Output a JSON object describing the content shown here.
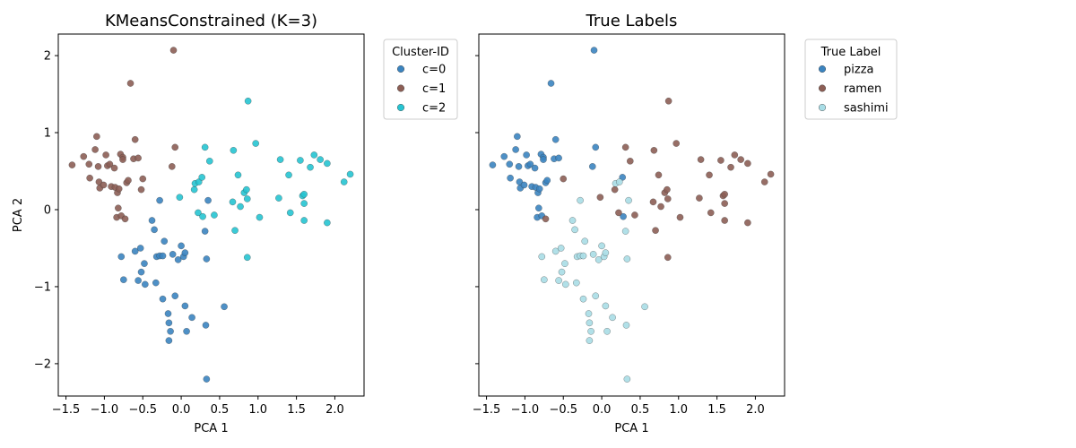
{
  "figure": {
    "background": "#ffffff"
  },
  "chart_data": [
    {
      "type": "scatter",
      "title": "KMeansConstrained (K=3)",
      "xlabel": "PCA 1",
      "ylabel": "PCA 2",
      "xlim": [
        -1.6,
        2.38
      ],
      "ylim": [
        -2.42,
        2.28
      ],
      "xticks": [
        -1.5,
        -1.0,
        -0.5,
        0.0,
        0.5,
        1.0,
        1.5,
        2.0
      ],
      "xtick_labels": [
        "−1.5",
        "−1.0",
        "−0.5",
        "0.0",
        "0.5",
        "1.0",
        "1.5",
        "2.0"
      ],
      "yticks": [
        -2,
        -1,
        0,
        1,
        2
      ],
      "ytick_labels": [
        "−2",
        "−1",
        "0",
        "1",
        "2"
      ],
      "show_yticklabels": true,
      "grid": false,
      "legend": {
        "title": "Cluster-ID",
        "placement": "outside-top-right",
        "entries": [
          {
            "label": "c=0",
            "color": "#3b84c0"
          },
          {
            "label": "c=1",
            "color": "#8c5e55"
          },
          {
            "label": "c=2",
            "color": "#26c4d2"
          }
        ]
      },
      "series": [
        {
          "name": "c=0",
          "color": "#3b84c0",
          "points": [
            [
              -0.78,
              -0.61
            ],
            [
              -0.75,
              -0.91
            ],
            [
              -0.6,
              -0.54
            ],
            [
              -0.56,
              -0.92
            ],
            [
              -0.53,
              -0.5
            ],
            [
              -0.52,
              -0.81
            ],
            [
              -0.48,
              -0.7
            ],
            [
              -0.47,
              -0.97
            ],
            [
              -0.38,
              -0.14
            ],
            [
              -0.35,
              -0.26
            ],
            [
              -0.33,
              -0.95
            ],
            [
              -0.32,
              -0.61
            ],
            [
              -0.28,
              -0.6
            ],
            [
              -0.24,
              -0.6
            ],
            [
              -0.24,
              -1.16
            ],
            [
              -0.22,
              -0.41
            ],
            [
              -0.16,
              -1.47
            ],
            [
              -0.16,
              -1.7
            ],
            [
              -0.17,
              -1.35
            ],
            [
              -0.14,
              -1.58
            ],
            [
              -0.11,
              -0.58
            ],
            [
              -0.08,
              -1.12
            ],
            [
              -0.04,
              -0.65
            ],
            [
              0.0,
              -0.47
            ],
            [
              0.03,
              -0.61
            ],
            [
              0.05,
              -0.56
            ],
            [
              0.05,
              -1.25
            ],
            [
              0.07,
              -1.58
            ],
            [
              0.14,
              -1.4
            ],
            [
              0.33,
              -0.64
            ],
            [
              0.32,
              -1.5
            ],
            [
              0.33,
              -2.2
            ],
            [
              0.56,
              -1.26
            ],
            [
              0.35,
              0.12
            ],
            [
              -0.28,
              0.12
            ],
            [
              0.31,
              -0.28
            ]
          ]
        },
        {
          "name": "c=1",
          "color": "#8c5e55",
          "points": [
            [
              -1.42,
              0.58
            ],
            [
              -1.27,
              0.69
            ],
            [
              -1.2,
              0.59
            ],
            [
              -1.19,
              0.41
            ],
            [
              -1.12,
              0.78
            ],
            [
              -1.1,
              0.95
            ],
            [
              -1.08,
              0.56
            ],
            [
              -1.07,
              0.36
            ],
            [
              -1.06,
              0.28
            ],
            [
              -1.01,
              0.32
            ],
            [
              -0.98,
              0.71
            ],
            [
              -0.96,
              0.57
            ],
            [
              -0.93,
              0.59
            ],
            [
              -0.91,
              0.3
            ],
            [
              -0.87,
              0.54
            ],
            [
              -0.86,
              0.29
            ],
            [
              -0.84,
              -0.1
            ],
            [
              -0.83,
              0.22
            ],
            [
              -0.82,
              0.02
            ],
            [
              -0.81,
              0.27
            ],
            [
              -0.79,
              0.72
            ],
            [
              -0.78,
              -0.08
            ],
            [
              -0.76,
              0.68
            ],
            [
              -0.76,
              0.65
            ],
            [
              -0.73,
              -0.12
            ],
            [
              -0.71,
              0.35
            ],
            [
              -0.69,
              0.38
            ],
            [
              -0.66,
              1.64
            ],
            [
              -0.62,
              0.66
            ],
            [
              -0.6,
              0.91
            ],
            [
              -0.56,
              0.67
            ],
            [
              -0.52,
              0.26
            ],
            [
              -0.5,
              0.4
            ],
            [
              -0.12,
              0.56
            ],
            [
              -0.1,
              2.07
            ],
            [
              -0.08,
              0.81
            ]
          ]
        },
        {
          "name": "c=2",
          "color": "#26c4d2",
          "points": [
            [
              -0.02,
              0.16
            ],
            [
              0.17,
              0.26
            ],
            [
              0.18,
              0.34
            ],
            [
              0.22,
              -0.04
            ],
            [
              0.23,
              0.36
            ],
            [
              0.27,
              0.42
            ],
            [
              0.28,
              -0.09
            ],
            [
              0.31,
              0.81
            ],
            [
              0.37,
              0.63
            ],
            [
              0.43,
              -0.07
            ],
            [
              0.67,
              0.1
            ],
            [
              0.68,
              0.77
            ],
            [
              0.7,
              -0.27
            ],
            [
              0.74,
              0.45
            ],
            [
              0.77,
              0.04
            ],
            [
              0.82,
              0.22
            ],
            [
              0.85,
              0.26
            ],
            [
              0.86,
              0.14
            ],
            [
              0.87,
              1.41
            ],
            [
              0.86,
              -0.62
            ],
            [
              0.97,
              0.86
            ],
            [
              1.02,
              -0.1
            ],
            [
              1.27,
              0.15
            ],
            [
              1.29,
              0.65
            ],
            [
              1.4,
              0.45
            ],
            [
              1.42,
              -0.04
            ],
            [
              1.55,
              0.64
            ],
            [
              1.58,
              0.18
            ],
            [
              1.6,
              0.2
            ],
            [
              1.6,
              -0.14
            ],
            [
              1.6,
              0.08
            ],
            [
              1.68,
              0.55
            ],
            [
              1.73,
              0.71
            ],
            [
              1.81,
              0.65
            ],
            [
              1.9,
              0.6
            ],
            [
              1.9,
              -0.17
            ],
            [
              2.12,
              0.36
            ],
            [
              2.2,
              0.46
            ]
          ]
        }
      ]
    },
    {
      "type": "scatter",
      "title": "True Labels",
      "xlabel": "PCA 1",
      "ylabel": "",
      "xlim": [
        -1.6,
        2.38
      ],
      "ylim": [
        -2.42,
        2.28
      ],
      "xticks": [
        -1.5,
        -1.0,
        -0.5,
        0.0,
        0.5,
        1.0,
        1.5,
        2.0
      ],
      "xtick_labels": [
        "−1.5",
        "−1.0",
        "−0.5",
        "0.0",
        "0.5",
        "1.0",
        "1.5",
        "2.0"
      ],
      "yticks": [
        -2,
        -1,
        0,
        1,
        2
      ],
      "ytick_labels": [],
      "show_yticklabels": false,
      "grid": false,
      "legend": {
        "title": "True Label",
        "placement": "outside-top-right",
        "entries": [
          {
            "label": "pizza",
            "color": "#3b84c0"
          },
          {
            "label": "ramen",
            "color": "#8c5e55"
          },
          {
            "label": "sashimi",
            "color": "#a8dde6"
          }
        ]
      },
      "series": [
        {
          "name": "pizza",
          "color": "#3b84c0",
          "points": [
            [
              -1.42,
              0.58
            ],
            [
              -1.27,
              0.69
            ],
            [
              -1.2,
              0.59
            ],
            [
              -1.19,
              0.41
            ],
            [
              -1.12,
              0.78
            ],
            [
              -1.1,
              0.95
            ],
            [
              -1.08,
              0.56
            ],
            [
              -1.07,
              0.36
            ],
            [
              -1.06,
              0.28
            ],
            [
              -1.01,
              0.32
            ],
            [
              -0.98,
              0.71
            ],
            [
              -0.96,
              0.57
            ],
            [
              -0.93,
              0.59
            ],
            [
              -0.91,
              0.3
            ],
            [
              -0.87,
              0.54
            ],
            [
              -0.86,
              0.29
            ],
            [
              -0.84,
              -0.1
            ],
            [
              -0.83,
              0.22
            ],
            [
              -0.82,
              0.02
            ],
            [
              -0.81,
              0.27
            ],
            [
              -0.79,
              0.72
            ],
            [
              -0.78,
              -0.08
            ],
            [
              -0.76,
              0.68
            ],
            [
              -0.76,
              0.65
            ],
            [
              -0.73,
              0.35
            ],
            [
              -0.71,
              0.38
            ],
            [
              -0.66,
              1.64
            ],
            [
              -0.62,
              0.66
            ],
            [
              -0.6,
              0.91
            ],
            [
              -0.56,
              0.67
            ],
            [
              -0.12,
              0.56
            ],
            [
              -0.1,
              2.07
            ],
            [
              -0.08,
              0.81
            ],
            [
              0.27,
              0.42
            ],
            [
              0.28,
              -0.09
            ]
          ]
        },
        {
          "name": "ramen",
          "color": "#8c5e55",
          "points": [
            [
              -0.73,
              -0.12
            ],
            [
              -0.5,
              0.4
            ],
            [
              -0.02,
              0.16
            ],
            [
              0.17,
              0.26
            ],
            [
              0.22,
              -0.04
            ],
            [
              0.31,
              0.81
            ],
            [
              0.37,
              0.63
            ],
            [
              0.43,
              -0.07
            ],
            [
              0.67,
              0.1
            ],
            [
              0.68,
              0.77
            ],
            [
              0.7,
              -0.27
            ],
            [
              0.74,
              0.45
            ],
            [
              0.77,
              0.04
            ],
            [
              0.82,
              0.22
            ],
            [
              0.85,
              0.26
            ],
            [
              0.86,
              0.14
            ],
            [
              0.87,
              1.41
            ],
            [
              0.86,
              -0.62
            ],
            [
              0.97,
              0.86
            ],
            [
              1.02,
              -0.1
            ],
            [
              1.27,
              0.15
            ],
            [
              1.29,
              0.65
            ],
            [
              1.4,
              0.45
            ],
            [
              1.42,
              -0.04
            ],
            [
              1.55,
              0.64
            ],
            [
              1.58,
              0.18
            ],
            [
              1.6,
              0.2
            ],
            [
              1.6,
              -0.14
            ],
            [
              1.6,
              0.08
            ],
            [
              1.68,
              0.55
            ],
            [
              1.73,
              0.71
            ],
            [
              1.81,
              0.65
            ],
            [
              1.9,
              0.6
            ],
            [
              1.9,
              -0.17
            ],
            [
              2.12,
              0.36
            ],
            [
              2.2,
              0.46
            ]
          ]
        },
        {
          "name": "sashimi",
          "color": "#a8dde6",
          "points": [
            [
              -0.78,
              -0.61
            ],
            [
              -0.75,
              -0.91
            ],
            [
              -0.6,
              -0.54
            ],
            [
              -0.56,
              -0.92
            ],
            [
              -0.53,
              -0.5
            ],
            [
              -0.52,
              -0.81
            ],
            [
              -0.48,
              -0.7
            ],
            [
              -0.47,
              -0.97
            ],
            [
              -0.38,
              -0.14
            ],
            [
              -0.35,
              -0.26
            ],
            [
              -0.33,
              -0.95
            ],
            [
              -0.32,
              -0.61
            ],
            [
              -0.28,
              -0.6
            ],
            [
              -0.24,
              -0.6
            ],
            [
              -0.24,
              -1.16
            ],
            [
              -0.22,
              -0.41
            ],
            [
              -0.16,
              -1.47
            ],
            [
              -0.16,
              -1.7
            ],
            [
              -0.17,
              -1.35
            ],
            [
              -0.14,
              -1.58
            ],
            [
              -0.11,
              -0.58
            ],
            [
              -0.08,
              -1.12
            ],
            [
              -0.04,
              -0.65
            ],
            [
              0.0,
              -0.47
            ],
            [
              0.03,
              -0.61
            ],
            [
              0.05,
              -0.56
            ],
            [
              0.05,
              -1.25
            ],
            [
              0.07,
              -1.58
            ],
            [
              0.14,
              -1.4
            ],
            [
              0.33,
              -0.64
            ],
            [
              0.32,
              -1.5
            ],
            [
              0.33,
              -2.2
            ],
            [
              0.56,
              -1.26
            ],
            [
              0.35,
              0.12
            ],
            [
              -0.28,
              0.12
            ],
            [
              0.31,
              -0.28
            ],
            [
              0.18,
              0.34
            ],
            [
              0.23,
              0.36
            ]
          ]
        }
      ]
    }
  ]
}
